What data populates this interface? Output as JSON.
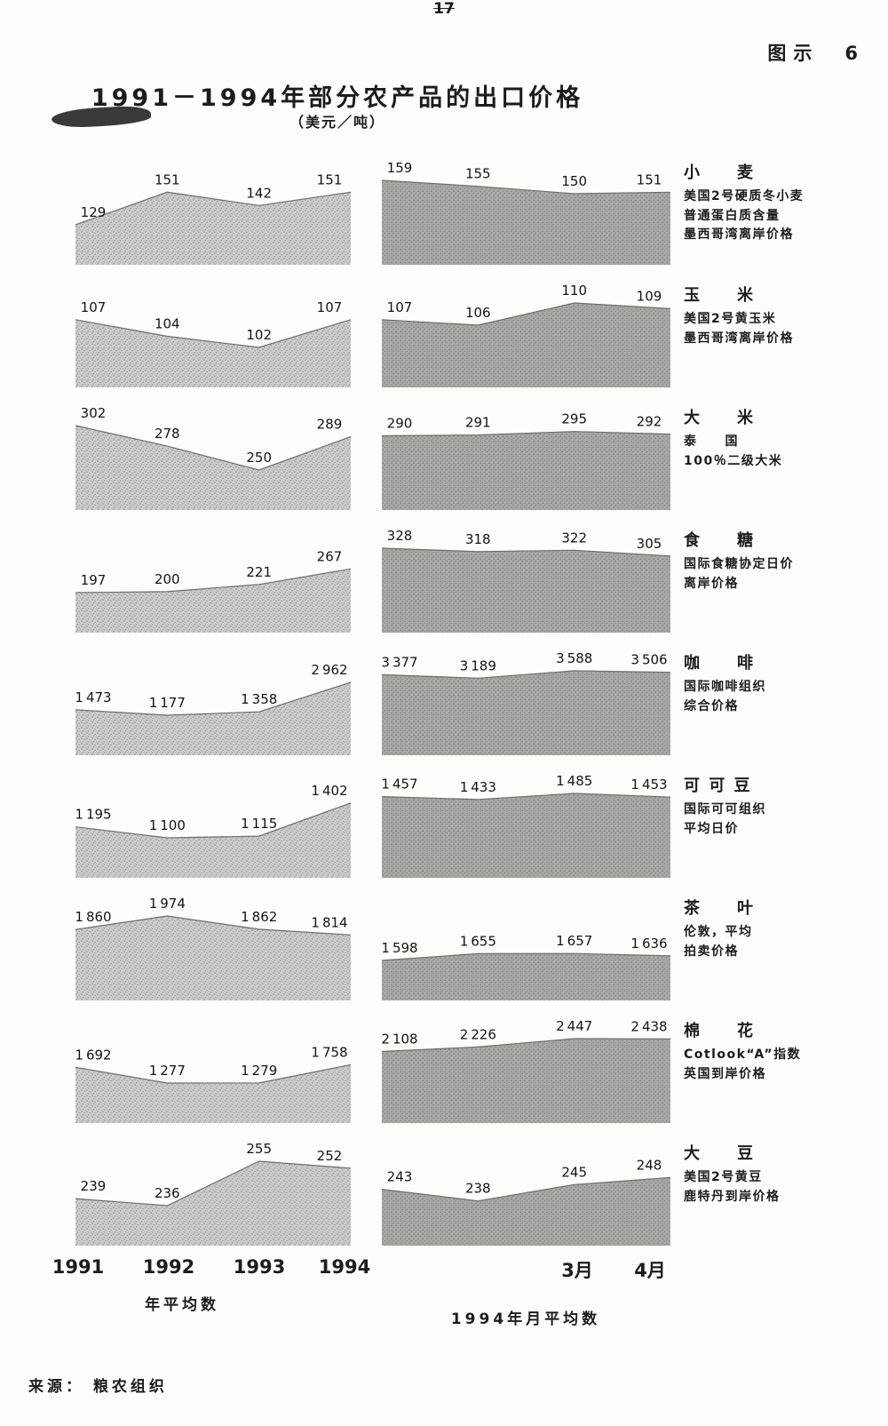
{
  "page": {
    "page_number": "17",
    "figure_label": "图示　6",
    "title": "1991－1994年部分农产品的出口价格",
    "subtitle": "（美元／吨）",
    "source": "来源： 粮农组织"
  },
  "axis": {
    "years": [
      "1991",
      "1992",
      "1993",
      "1994"
    ],
    "years_caption": "年平均数",
    "month_ticks": [
      "3月",
      "4月"
    ],
    "months_caption": "1994年月平均数"
  },
  "chart_data": {
    "type": "area",
    "title": "1991－1994年部分农产品的出口价格",
    "unit": "美元／吨",
    "annual_categories": [
      "1991",
      "1992",
      "1993",
      "1994"
    ],
    "monthly_categories": [
      "",
      "",
      "3月",
      "4月"
    ],
    "annual_axis_caption": "年平均数",
    "monthly_axis_caption": "1994年月平均数",
    "source": "来源：粮农组织",
    "products": [
      {
        "name": "小　　麦",
        "description": [
          "美国2号硬质冬小麦",
          "普通蛋白质含量",
          "墨西哥湾离岸价格"
        ],
        "annual_values": [
          129,
          151,
          142,
          151
        ],
        "monthly_1994_values": [
          159,
          155,
          150,
          151
        ]
      },
      {
        "name": "玉　　米",
        "description": [
          "美国2号黄玉米",
          "墨西哥湾离岸价格"
        ],
        "annual_values": [
          107,
          104,
          102,
          107
        ],
        "monthly_1994_values": [
          107,
          106,
          110,
          109
        ]
      },
      {
        "name": "大　　米",
        "description": [
          "泰　　国",
          "100％二级大米"
        ],
        "annual_values": [
          302,
          278,
          250,
          289
        ],
        "monthly_1994_values": [
          290,
          291,
          295,
          292
        ]
      },
      {
        "name": "食　　糖",
        "description": [
          "国际食糖协定日价",
          "离岸价格"
        ],
        "annual_values": [
          197,
          200,
          221,
          267
        ],
        "monthly_1994_values": [
          328,
          318,
          322,
          305
        ]
      },
      {
        "name": "咖　　啡",
        "description": [
          "国际咖啡组织",
          "综合价格"
        ],
        "annual_values": [
          1473,
          1177,
          1358,
          2962
        ],
        "monthly_1994_values": [
          3377,
          3189,
          3588,
          3506
        ]
      },
      {
        "name": "可 可 豆",
        "description": [
          "国际可可组织",
          "平均日价"
        ],
        "annual_values": [
          1195,
          1100,
          1115,
          1402
        ],
        "monthly_1994_values": [
          1457,
          1433,
          1485,
          1453
        ]
      },
      {
        "name": "茶　　叶",
        "description": [
          "伦敦，平均",
          "拍卖价格"
        ],
        "annual_values": [
          1860,
          1974,
          1862,
          1814
        ],
        "monthly_1994_values": [
          1598,
          1655,
          1657,
          1636
        ]
      },
      {
        "name": "棉　　花",
        "description": [
          "Cotlook“A”指数",
          "英国到岸价格"
        ],
        "annual_values": [
          1692,
          1277,
          1279,
          1758
        ],
        "monthly_1994_values": [
          2108,
          2226,
          2447,
          2438
        ]
      },
      {
        "name": "大　　豆",
        "description": [
          "美国2号黄豆",
          "鹿特丹到岸价格"
        ],
        "annual_values": [
          239,
          236,
          255,
          252
        ],
        "monthly_1994_values": [
          243,
          238,
          245,
          248
        ]
      }
    ]
  }
}
